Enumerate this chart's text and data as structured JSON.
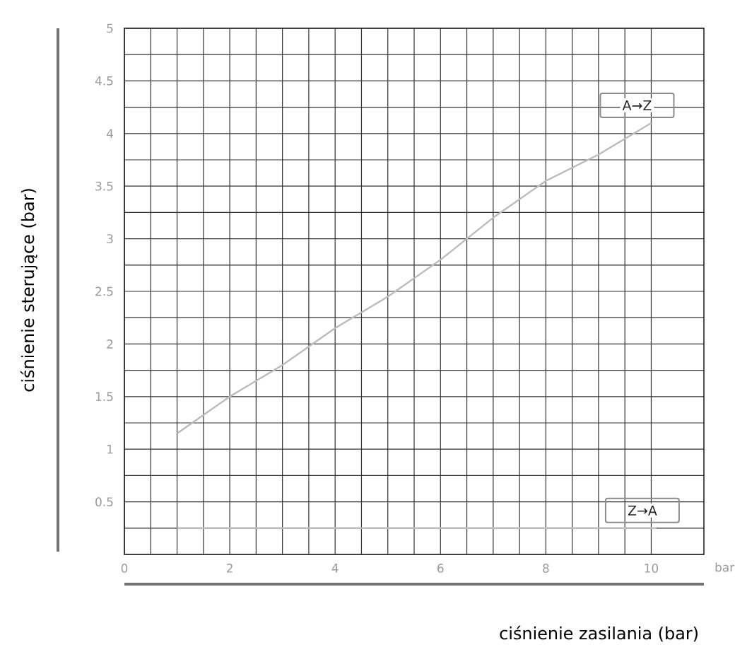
{
  "chart_data": {
    "type": "line",
    "xlabel": "ciśnienie zasilania (bar)",
    "ylabel": "ciśnienie sterujące (bar)",
    "xlim": [
      0,
      11
    ],
    "ylim": [
      0,
      5
    ],
    "xticks": [
      0,
      2,
      4,
      6,
      8,
      10
    ],
    "yticks": [
      {
        "value": 0,
        "label": null
      },
      0.5,
      1,
      1.5,
      2,
      2.5,
      3,
      3.5,
      4,
      4.5,
      5
    ],
    "grid": true,
    "legend": false,
    "marker": "none",
    "line_style": "solid",
    "annotations": [
      "bar"
    ],
    "series": [
      {
        "name": "A→Z",
        "color": "#bbbbbb",
        "x": [
          1,
          2,
          3,
          4,
          5,
          6,
          7,
          8,
          9,
          10
        ],
        "values": [
          1.15,
          1.5,
          1.8,
          2.15,
          2.45,
          2.8,
          3.2,
          3.55,
          3.8,
          4.1
        ]
      },
      {
        "name": "Z→A",
        "color": "#bbbbbb",
        "x": [
          1,
          10.1
        ],
        "values": [
          0.25,
          0.25
        ]
      }
    ]
  }
}
